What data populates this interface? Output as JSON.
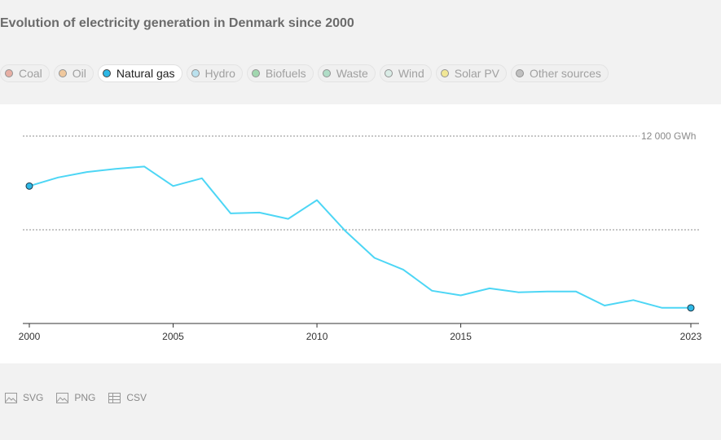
{
  "title": "Evolution of electricity generation in Denmark since 2000",
  "legend": [
    {
      "label": "Coal",
      "color": "#e07b67",
      "active": false
    },
    {
      "label": "Oil",
      "color": "#f0a85a",
      "active": false
    },
    {
      "label": "Natural gas",
      "color": "#2eb8e6",
      "active": true
    },
    {
      "label": "Hydro",
      "color": "#8fd6ee",
      "active": false
    },
    {
      "label": "Biofuels",
      "color": "#62c37a",
      "active": false
    },
    {
      "label": "Waste",
      "color": "#7ccfa7",
      "active": false
    },
    {
      "label": "Wind",
      "color": "#c9e9df",
      "active": false
    },
    {
      "label": "Solar PV",
      "color": "#f3e04d",
      "active": false
    },
    {
      "label": "Other sources",
      "color": "#9a9a9a",
      "active": false
    }
  ],
  "downloads": {
    "svg": "SVG",
    "png": "PNG",
    "csv": "CSV"
  },
  "chart_data": {
    "type": "line",
    "title": "Evolution of electricity generation in Denmark since 2000",
    "series": [
      {
        "name": "Natural gas",
        "color": "#4dd6f5",
        "x": [
          2000,
          2001,
          2002,
          2003,
          2004,
          2005,
          2006,
          2007,
          2008,
          2009,
          2010,
          2011,
          2012,
          2013,
          2014,
          2015,
          2016,
          2017,
          2018,
          2019,
          2020,
          2021,
          2022,
          2023
        ],
        "values": [
          8800,
          9350,
          9700,
          9900,
          10050,
          8800,
          9300,
          7050,
          7100,
          6700,
          7900,
          5900,
          4200,
          3450,
          2100,
          1800,
          2250,
          2000,
          2050,
          2050,
          1150,
          1500,
          1000,
          1000
        ]
      }
    ],
    "xlim": [
      2000,
      2023
    ],
    "ylim": [
      0,
      12000
    ],
    "x_tick_labels": [
      "2000",
      "2005",
      "2010",
      "2015",
      "2023"
    ],
    "x_ticks": [
      2000,
      2005,
      2010,
      2015,
      2023
    ],
    "y_gridlines": [
      6000,
      12000
    ],
    "y_tick_label": "12 000 GWh",
    "y_tick_label_value": 12000,
    "grid": "horizontal dotted"
  }
}
